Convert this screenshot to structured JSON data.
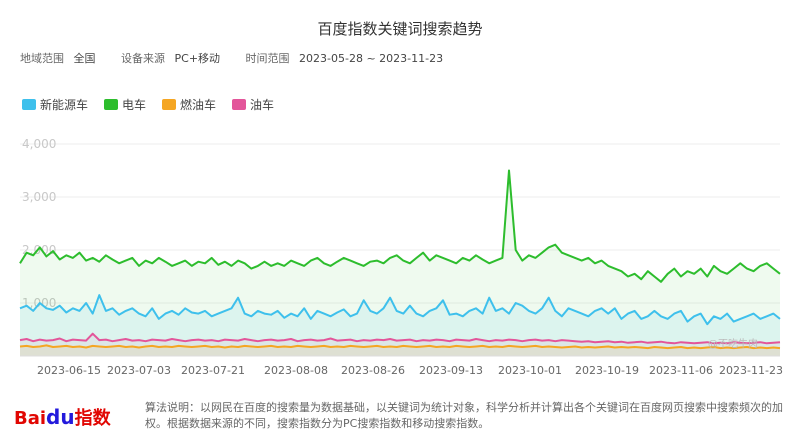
{
  "title": "百度指数关键词搜索趋势",
  "filters": {
    "region_label": "地域范围",
    "region_value": "全国",
    "source_label": "设备来源",
    "source_value": "PC+移动",
    "time_label": "时间范围",
    "time_value": "2023-05-28 ~ 2023-11-23"
  },
  "legend": [
    {
      "name": "新能源车",
      "color": "#3ec0ec"
    },
    {
      "name": "电车",
      "color": "#2dbd2d"
    },
    {
      "name": "燃油车",
      "color": "#f5a623"
    },
    {
      "name": "油车",
      "color": "#e3559a"
    }
  ],
  "chart_data": {
    "type": "area",
    "ylim": [
      0,
      4000
    ],
    "yticks": [
      "1,000",
      "2,000",
      "3,000",
      "4,000"
    ],
    "x_tick_labels": [
      "2023-06-15",
      "2023-07-03",
      "2023-07-21",
      "2023-08-08",
      "2023-08-26",
      "2023-09-13",
      "2023-10-01",
      "2023-10-19",
      "2023-11-06",
      "2023-11-23"
    ],
    "x_range": [
      "2023-05-28",
      "2023-11-23"
    ],
    "grid": true,
    "series": [
      {
        "name": "电车",
        "color": "#2dbd2d",
        "values": [
          1750,
          1950,
          1900,
          2050,
          1880,
          1980,
          1820,
          1900,
          1850,
          1950,
          1800,
          1850,
          1780,
          1900,
          1820,
          1750,
          1800,
          1850,
          1700,
          1800,
          1750,
          1850,
          1780,
          1700,
          1750,
          1800,
          1700,
          1780,
          1750,
          1850,
          1720,
          1780,
          1700,
          1800,
          1750,
          1650,
          1700,
          1780,
          1700,
          1750,
          1700,
          1800,
          1750,
          1700,
          1800,
          1850,
          1750,
          1700,
          1780,
          1850,
          1800,
          1750,
          1700,
          1780,
          1800,
          1750,
          1850,
          1900,
          1800,
          1750,
          1850,
          1950,
          1800,
          1900,
          1850,
          1800,
          1750,
          1850,
          1800,
          1900,
          1820,
          1750,
          1800,
          1850,
          3500,
          2000,
          1800,
          1900,
          1850,
          1950,
          2050,
          2100,
          1950,
          1900,
          1850,
          1800,
          1850,
          1750,
          1800,
          1700,
          1650,
          1600,
          1500,
          1550,
          1450,
          1600,
          1500,
          1400,
          1550,
          1650,
          1500,
          1600,
          1550,
          1650,
          1500,
          1700,
          1600,
          1550,
          1650,
          1750,
          1650,
          1600,
          1700,
          1750,
          1650,
          1550
        ]
      },
      {
        "name": "新能源车",
        "color": "#3ec0ec",
        "values": [
          900,
          950,
          850,
          1000,
          900,
          870,
          950,
          820,
          900,
          850,
          1000,
          800,
          1150,
          850,
          900,
          780,
          850,
          900,
          800,
          750,
          900,
          700,
          800,
          850,
          780,
          900,
          820,
          800,
          850,
          750,
          800,
          850,
          900,
          1100,
          800,
          750,
          850,
          800,
          780,
          850,
          720,
          800,
          750,
          900,
          700,
          850,
          800,
          750,
          820,
          880,
          750,
          800,
          1050,
          850,
          800,
          900,
          1100,
          850,
          800,
          950,
          800,
          750,
          850,
          900,
          1050,
          780,
          800,
          750,
          850,
          900,
          800,
          1100,
          850,
          900,
          800,
          1000,
          950,
          850,
          800,
          900,
          1100,
          850,
          750,
          900,
          850,
          800,
          750,
          850,
          900,
          800,
          900,
          700,
          800,
          850,
          700,
          750,
          850,
          750,
          700,
          800,
          850,
          650,
          750,
          800,
          600,
          750,
          700,
          800,
          650,
          700,
          750,
          800,
          700,
          750,
          800,
          700
        ]
      },
      {
        "name": "油车",
        "color": "#e3559a",
        "values": [
          300,
          320,
          280,
          310,
          290,
          300,
          330,
          280,
          310,
          300,
          290,
          420,
          300,
          310,
          280,
          300,
          320,
          290,
          300,
          280,
          310,
          300,
          290,
          320,
          300,
          280,
          300,
          310,
          290,
          300,
          280,
          310,
          300,
          290,
          320,
          300,
          280,
          300,
          310,
          290,
          300,
          320,
          280,
          300,
          310,
          290,
          300,
          330,
          290,
          300,
          310,
          280,
          300,
          290,
          310,
          300,
          320,
          290,
          300,
          310,
          280,
          300,
          290,
          310,
          300,
          280,
          310,
          300,
          290,
          320,
          300,
          280,
          300,
          290,
          310,
          300,
          280,
          300,
          310,
          290,
          300,
          280,
          300,
          290,
          280,
          270,
          280,
          260,
          270,
          280,
          260,
          270,
          250,
          260,
          270,
          250,
          260,
          270,
          250,
          240,
          260,
          250,
          240,
          250,
          260,
          240,
          250,
          240,
          260,
          250,
          240,
          250,
          260,
          240,
          250,
          260
        ]
      },
      {
        "name": "燃油车",
        "color": "#f5a623",
        "values": [
          180,
          190,
          170,
          180,
          200,
          170,
          180,
          190,
          170,
          180,
          160,
          190,
          180,
          170,
          180,
          190,
          170,
          180,
          160,
          180,
          190,
          170,
          180,
          170,
          190,
          180,
          170,
          180,
          190,
          170,
          180,
          160,
          180,
          170,
          190,
          180,
          170,
          180,
          190,
          170,
          180,
          170,
          190,
          180,
          170,
          180,
          190,
          170,
          180,
          170,
          190,
          180,
          170,
          180,
          190,
          170,
          180,
          170,
          190,
          180,
          170,
          180,
          190,
          170,
          180,
          170,
          190,
          180,
          170,
          180,
          190,
          170,
          180,
          170,
          190,
          180,
          170,
          180,
          190,
          170,
          180,
          170,
          160,
          170,
          180,
          160,
          170,
          160,
          170,
          180,
          160,
          170,
          160,
          170,
          160,
          150,
          170,
          160,
          150,
          160,
          170,
          150,
          160,
          150,
          160,
          170,
          150,
          160,
          150,
          160,
          170,
          150,
          160,
          150,
          160,
          150
        ]
      }
    ]
  },
  "watermark": "@不吃牛肉",
  "footer": {
    "logo_bai": "Bai",
    "logo_paw": "du",
    "logo_zs": "指数",
    "note": "算法说明：以网民在百度的搜索量为数据基础，以关键词为统计对象，科学分析并计算出各个关键词在百度网页搜索中搜索频次的加权。根据数据来源的不同，搜索指数分为PC搜索指数和移动搜索指数。"
  }
}
